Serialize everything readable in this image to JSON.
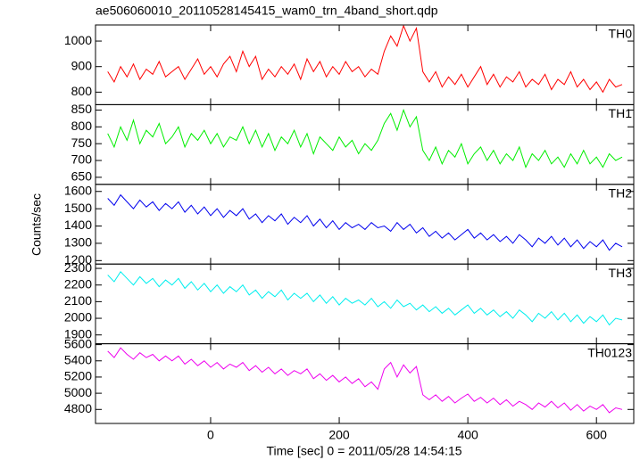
{
  "chart_data": {
    "type": "line",
    "title": "ae506060010_20110528145415_wam0_trn_4band_short.qdp",
    "xlabel": "Time [sec] 0 = 2011/05/28 14:54:15",
    "ylabel": "Counts/sec",
    "xlim": [
      -179,
      658
    ],
    "xticks": [
      0,
      200,
      400,
      600
    ],
    "x": [
      -160,
      -150,
      -140,
      -130,
      -120,
      -110,
      -100,
      -90,
      -80,
      -70,
      -60,
      -50,
      -40,
      -30,
      -20,
      -10,
      0,
      10,
      20,
      30,
      40,
      50,
      60,
      70,
      80,
      90,
      100,
      110,
      120,
      130,
      140,
      150,
      160,
      170,
      180,
      190,
      200,
      210,
      220,
      230,
      240,
      250,
      260,
      270,
      280,
      290,
      300,
      310,
      320,
      330,
      340,
      350,
      360,
      370,
      380,
      390,
      400,
      410,
      420,
      430,
      440,
      450,
      460,
      470,
      480,
      490,
      500,
      510,
      520,
      530,
      540,
      550,
      560,
      570,
      580,
      590,
      600,
      610,
      620,
      630,
      640
    ],
    "series": [
      {
        "name": "TH0",
        "color": "#ff0000",
        "ylim": [
          751,
          1063
        ],
        "yticks": [
          800,
          900,
          1000
        ],
        "values": [
          880,
          840,
          900,
          860,
          910,
          850,
          890,
          870,
          920,
          860,
          880,
          900,
          850,
          890,
          930,
          870,
          900,
          860,
          910,
          940,
          880,
          960,
          900,
          940,
          850,
          890,
          860,
          900,
          870,
          910,
          850,
          930,
          880,
          920,
          860,
          900,
          870,
          920,
          880,
          900,
          860,
          890,
          870,
          960,
          1020,
          980,
          1060,
          1000,
          1050,
          880,
          840,
          880,
          820,
          860,
          830,
          870,
          820,
          860,
          900,
          830,
          870,
          820,
          860,
          840,
          880,
          820,
          850,
          830,
          870,
          810,
          850,
          830,
          880,
          820,
          850,
          810,
          840,
          800,
          850,
          820,
          830
        ]
      },
      {
        "name": "TH1",
        "color": "#00ee00",
        "ylim": [
          629,
          866
        ],
        "yticks": [
          650,
          700,
          750,
          800,
          850
        ],
        "values": [
          780,
          740,
          800,
          760,
          820,
          750,
          790,
          770,
          810,
          750,
          770,
          800,
          740,
          780,
          760,
          790,
          750,
          780,
          740,
          770,
          760,
          800,
          750,
          790,
          740,
          780,
          730,
          770,
          750,
          790,
          740,
          780,
          720,
          770,
          750,
          730,
          770,
          740,
          760,
          720,
          750,
          730,
          760,
          810,
          840,
          790,
          850,
          800,
          830,
          730,
          700,
          740,
          690,
          730,
          710,
          750,
          690,
          720,
          740,
          700,
          730,
          690,
          720,
          700,
          740,
          680,
          720,
          700,
          730,
          690,
          710,
          680,
          720,
          690,
          730,
          690,
          710,
          680,
          720,
          700,
          710
        ]
      },
      {
        "name": "TH2",
        "color": "#0000ee",
        "ylim": [
          1180,
          1641
        ],
        "yticks": [
          1200,
          1300,
          1400,
          1500,
          1600
        ],
        "values": [
          1560,
          1520,
          1580,
          1540,
          1500,
          1550,
          1510,
          1540,
          1490,
          1530,
          1500,
          1540,
          1480,
          1520,
          1470,
          1510,
          1460,
          1500,
          1450,
          1490,
          1460,
          1500,
          1440,
          1470,
          1420,
          1460,
          1430,
          1470,
          1410,
          1450,
          1420,
          1460,
          1400,
          1440,
          1390,
          1430,
          1380,
          1420,
          1390,
          1410,
          1380,
          1420,
          1390,
          1400,
          1370,
          1420,
          1380,
          1410,
          1360,
          1390,
          1340,
          1370,
          1330,
          1360,
          1320,
          1350,
          1380,
          1330,
          1360,
          1320,
          1350,
          1310,
          1340,
          1300,
          1350,
          1320,
          1280,
          1330,
          1300,
          1340,
          1290,
          1330,
          1280,
          1320,
          1270,
          1310,
          1280,
          1320,
          1260,
          1300,
          1280
        ]
      },
      {
        "name": "TH3",
        "color": "#00eeee",
        "ylim": [
          1847,
          2326
        ],
        "yticks": [
          1900,
          2000,
          2100,
          2200,
          2300
        ],
        "values": [
          2260,
          2220,
          2280,
          2240,
          2200,
          2250,
          2210,
          2240,
          2190,
          2230,
          2200,
          2240,
          2180,
          2220,
          2170,
          2210,
          2160,
          2200,
          2150,
          2190,
          2160,
          2200,
          2140,
          2170,
          2120,
          2160,
          2130,
          2170,
          2110,
          2150,
          2120,
          2150,
          2100,
          2140,
          2090,
          2130,
          2080,
          2120,
          2090,
          2110,
          2080,
          2120,
          2070,
          2100,
          2060,
          2110,
          2070,
          2090,
          2050,
          2080,
          2040,
          2070,
          2030,
          2060,
          2020,
          2050,
          2080,
          2030,
          2060,
          2020,
          2050,
          2010,
          2040,
          2000,
          2050,
          2020,
          1980,
          2030,
          2000,
          2040,
          1990,
          2030,
          1980,
          2020,
          1970,
          2010,
          1980,
          2020,
          1960,
          2000,
          1990
        ]
      },
      {
        "name": "TH0123",
        "color": "#ee00ee",
        "ylim": [
          4627,
          5611
        ],
        "yticks": [
          4800,
          5000,
          5200,
          5400,
          5600
        ],
        "values": [
          5520,
          5440,
          5560,
          5480,
          5420,
          5500,
          5440,
          5480,
          5400,
          5460,
          5400,
          5460,
          5360,
          5420,
          5340,
          5400,
          5320,
          5380,
          5300,
          5360,
          5320,
          5380,
          5280,
          5340,
          5260,
          5320,
          5240,
          5300,
          5220,
          5280,
          5240,
          5300,
          5180,
          5240,
          5160,
          5220,
          5140,
          5200,
          5120,
          5180,
          5080,
          5140,
          5050,
          5300,
          5380,
          5200,
          5350,
          5250,
          5330,
          4980,
          4920,
          4980,
          4900,
          4960,
          4880,
          4940,
          4990,
          4900,
          4950,
          4880,
          4940,
          4860,
          4920,
          4840,
          4900,
          4860,
          4800,
          4880,
          4830,
          4900,
          4820,
          4880,
          4790,
          4860,
          4780,
          4840,
          4800,
          4860,
          4760,
          4820,
          4800
        ]
      }
    ]
  }
}
